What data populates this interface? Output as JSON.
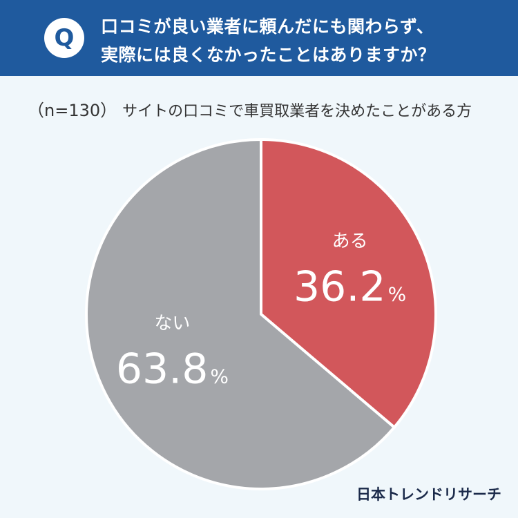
{
  "question": {
    "badge": "Q",
    "line1": "口コミが良い業者に頼んだにも関わらず、",
    "line2": "実際には良くなかったことはありますか？"
  },
  "subtitle": {
    "n": "（n=130）",
    "text": "サイトの口コミで車買取業者を決めたことがある方"
  },
  "brand": "日本トレンドリサーチ",
  "colors": {
    "header": "#1f5a9e",
    "yes": "#d2575b",
    "no": "#a4a6aa"
  },
  "chart_data": {
    "type": "pie",
    "slices": [
      {
        "label": "ある",
        "value": 36.2,
        "value_text": "36.2",
        "unit": "%",
        "color": "#d2575b"
      },
      {
        "label": "ない",
        "value": 63.8,
        "value_text": "63.8",
        "unit": "%",
        "color": "#a4a6aa"
      }
    ]
  }
}
